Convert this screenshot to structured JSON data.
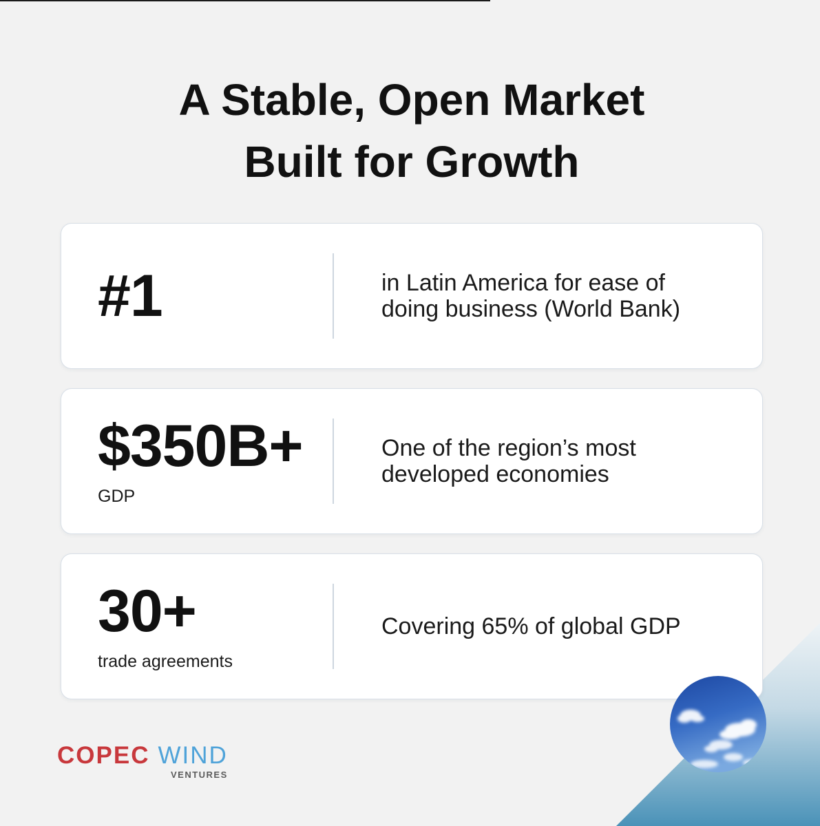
{
  "title": {
    "line1": "A Stable, Open Market",
    "line2": "Built for Growth"
  },
  "cards": [
    {
      "stat": "#1",
      "description": [
        "in Latin America for ease of",
        "doing business (World Bank)"
      ]
    },
    {
      "stat": "$350B+",
      "stat_label": "GDP",
      "description": [
        "One of the region’s most",
        "developed economies"
      ]
    },
    {
      "stat": "30+",
      "stat_label": "trade agreements",
      "description": [
        "Covering 65% of global GDP"
      ]
    }
  ],
  "logo": {
    "word1": "COPEC",
    "word2": "WIND",
    "tagline": "VENTURES"
  },
  "colors": {
    "background": "#f2f2f2",
    "text": "#111111",
    "card_background": "#ffffff",
    "card_border": "#d8dfe7",
    "divider": "#cdd6df",
    "logo_red": "#c8383c",
    "logo_blue": "#4fa3d9",
    "logo_tagline": "#5b5b5b",
    "accent_light": "#eef3f6",
    "accent_dark": "#4a92b8"
  }
}
